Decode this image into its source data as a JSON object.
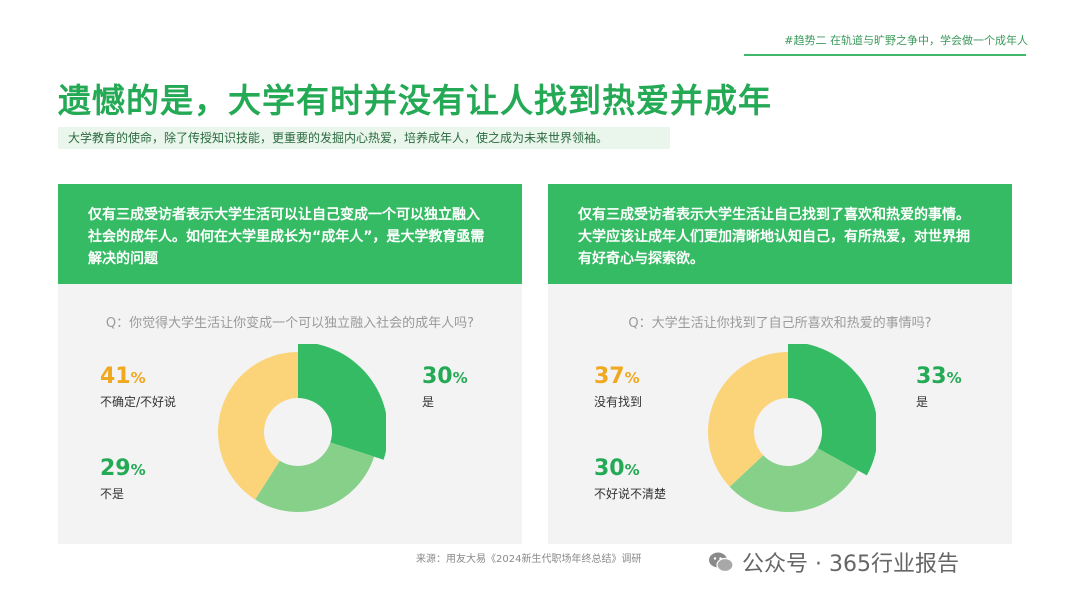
{
  "header": {
    "topnote": "#趋势二 在轨道与旷野之争中，学会做一个成年人",
    "title": "遗憾的是，大学有时并没有让人找到热爱并成年",
    "subtitle": "大学教育的使命，除了传授知识技能，更重要的发掘内心热爱，培养成年人，使之成为未来世界领袖。"
  },
  "panels": [
    {
      "banner": "仅有三成受访者表示大学生活可以让自己变成一个可以独立融入社会的成年人。如何在大学里成长为“成年人”，是大学教育亟需解决的问题",
      "question": "Q：你觉得大学生活让你变成一个可以独立融入社会的成年人吗?"
    },
    {
      "banner": "仅有三成受访者表示大学生活让自己找到了喜欢和热爱的事情。大学应该让成年人们更加清晰地认知自己，有所热爱，对世界拥有好奇心与探索欲。",
      "question": "Q：大学生活让你找到了自己所喜欢和热爱的事情吗?"
    }
  ],
  "chart_data": [
    {
      "type": "pie",
      "donut": true,
      "slices": [
        {
          "label": "是",
          "value": 30,
          "display": "30",
          "color": "#36bb65"
        },
        {
          "label": "不是",
          "value": 29,
          "display": "29",
          "color": "#86d08a"
        },
        {
          "label": "不确定/不好说",
          "value": 41,
          "display": "41",
          "color": "#fbd479"
        }
      ]
    },
    {
      "type": "pie",
      "donut": true,
      "slices": [
        {
          "label": "是",
          "value": 33,
          "display": "33",
          "color": "#36bb65"
        },
        {
          "label": "不好说不清楚",
          "value": 30,
          "display": "30",
          "color": "#86d08a"
        },
        {
          "label": "没有找到",
          "value": 37,
          "display": "37",
          "color": "#fbd479"
        }
      ]
    }
  ],
  "colors": {
    "green_text": "#24a955",
    "yellow_text": "#f0a820"
  },
  "pct_sign": "%",
  "footer": {
    "source": "来源：用友大易《2024新生代职场年终总结》调研",
    "watermark": "公众号 · 365行业报告"
  },
  "icons": {
    "watermark_icon": "wechat-icon"
  }
}
